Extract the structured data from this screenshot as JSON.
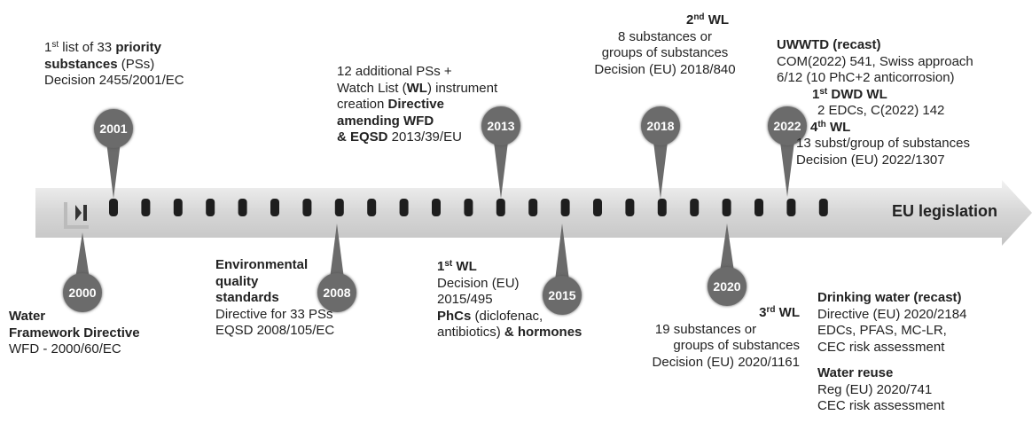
{
  "bar_label": "EU legislation",
  "events": [
    {
      "year": "2000",
      "lines": [
        [
          "Water"
        ],
        [
          "Framework Directive"
        ],
        [
          "WFD - 2000/60/EC"
        ]
      ]
    },
    {
      "year": "2001",
      "lines": [
        [
          "1",
          "st",
          " list of 33 ",
          "priority"
        ],
        [
          "substances",
          " (PSs)"
        ],
        [
          "Decision 2455/2001/EC"
        ]
      ]
    },
    {
      "year": "2008",
      "lines": [
        [
          "Environmental"
        ],
        [
          "quality"
        ],
        [
          "standards"
        ],
        [
          "Directive for 33 PSs"
        ],
        [
          "EQSD 2008/105/EC"
        ]
      ]
    },
    {
      "year": "2013",
      "lines": [
        [
          "12 additional PSs +"
        ],
        [
          "Watch List (",
          "WL",
          ") instrument"
        ],
        [
          "creation ",
          "Directive"
        ],
        [
          "amending WFD"
        ],
        [
          "& EQSD",
          " 2013/39/EU"
        ]
      ]
    },
    {
      "year": "2015",
      "lines": [
        [
          "1",
          "st",
          " WL"
        ],
        [
          "Decision (EU)"
        ],
        [
          "2015/495"
        ],
        [
          "PhCs",
          " (diclofenac,"
        ],
        [
          "antibiotics) ",
          "& hormones"
        ]
      ]
    },
    {
      "year": "2018",
      "lines": [
        [
          "2",
          "nd",
          " WL"
        ],
        [
          "8 substances or"
        ],
        [
          "groups of substances"
        ],
        [
          "Decision (EU) 2018/840"
        ]
      ]
    },
    {
      "year": "2020",
      "lines": [
        [
          "3",
          "rd",
          " WL"
        ],
        [
          "19 substances or"
        ],
        [
          "groups of substances"
        ],
        [
          "Decision (EU) 2020/1161"
        ]
      ]
    },
    {
      "year": "2022",
      "lines": [
        [
          "UWWTD (recast)"
        ],
        [
          "COM(2022) 541, Swiss approach"
        ],
        [
          "6/12 (10 PhC+2 anticorrosion)"
        ],
        [
          "1",
          "st",
          " DWD WL"
        ],
        [
          "2 EDCs, C(2022) 142"
        ],
        [
          "4",
          "th",
          " WL"
        ],
        [
          "13 subst/group of substances"
        ],
        [
          "Decision  (EU) 2022/1307"
        ]
      ]
    }
  ],
  "notes": [
    {
      "lines": [
        [
          "Drinking water (recast)"
        ],
        [
          "Directive (EU) 2020/2184"
        ],
        [
          "EDCs, PFAS, MC-LR,"
        ],
        [
          "CEC risk assessment"
        ]
      ]
    },
    {
      "lines": [
        [
          "Water reuse"
        ],
        [
          "Reg (EU) 2020/741"
        ],
        [
          "CEC risk assessment"
        ]
      ]
    }
  ]
}
